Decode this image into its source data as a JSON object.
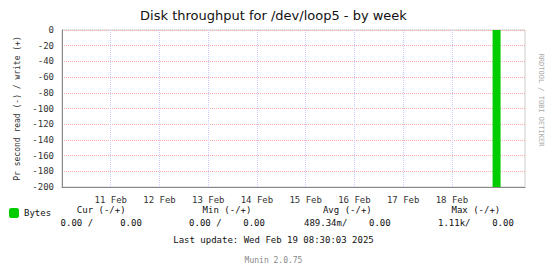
{
  "chart_data": {
    "type": "bar",
    "title": "Disk throughput for /dev/loop5 - by week",
    "ylabel": "Pr second read (-) / write (+)",
    "x": [
      1739916000
    ],
    "series": [
      {
        "name": "Bytes",
        "color": "#00cc00",
        "values": [
          -200
        ]
      }
    ],
    "xlim": [
      1739145600,
      1739966400
    ],
    "xticks": [
      {
        "value": 1739232000,
        "label": "11 Feb"
      },
      {
        "value": 1739318400,
        "label": "12 Feb"
      },
      {
        "value": 1739404800,
        "label": "13 Feb"
      },
      {
        "value": 1739491200,
        "label": "14 Feb"
      },
      {
        "value": 1739577600,
        "label": "15 Feb"
      },
      {
        "value": 1739664000,
        "label": "16 Feb"
      },
      {
        "value": 1739750400,
        "label": "17 Feb"
      },
      {
        "value": 1739836800,
        "label": "18 Feb"
      }
    ],
    "ylim": [
      -200,
      0
    ],
    "yticks": [
      0,
      -20,
      -40,
      -60,
      -80,
      -100,
      -120,
      -140,
      -160,
      -180,
      -200
    ],
    "grid": true,
    "legend": "lower left",
    "annotations": [
      "Cur (-/+)",
      "Min (-/+)",
      "Avg (-/+)",
      "Max (-/+)",
      "0.00 /     0.00",
      "0.00 /    0.00",
      "489.34m/    0.00",
      "1.11k/    0.00",
      "Last update: Wed Feb 19 08:30:03 2025",
      "Munin 2.0.75",
      "RRDTOOL / TOBI OETIKER"
    ]
  }
}
